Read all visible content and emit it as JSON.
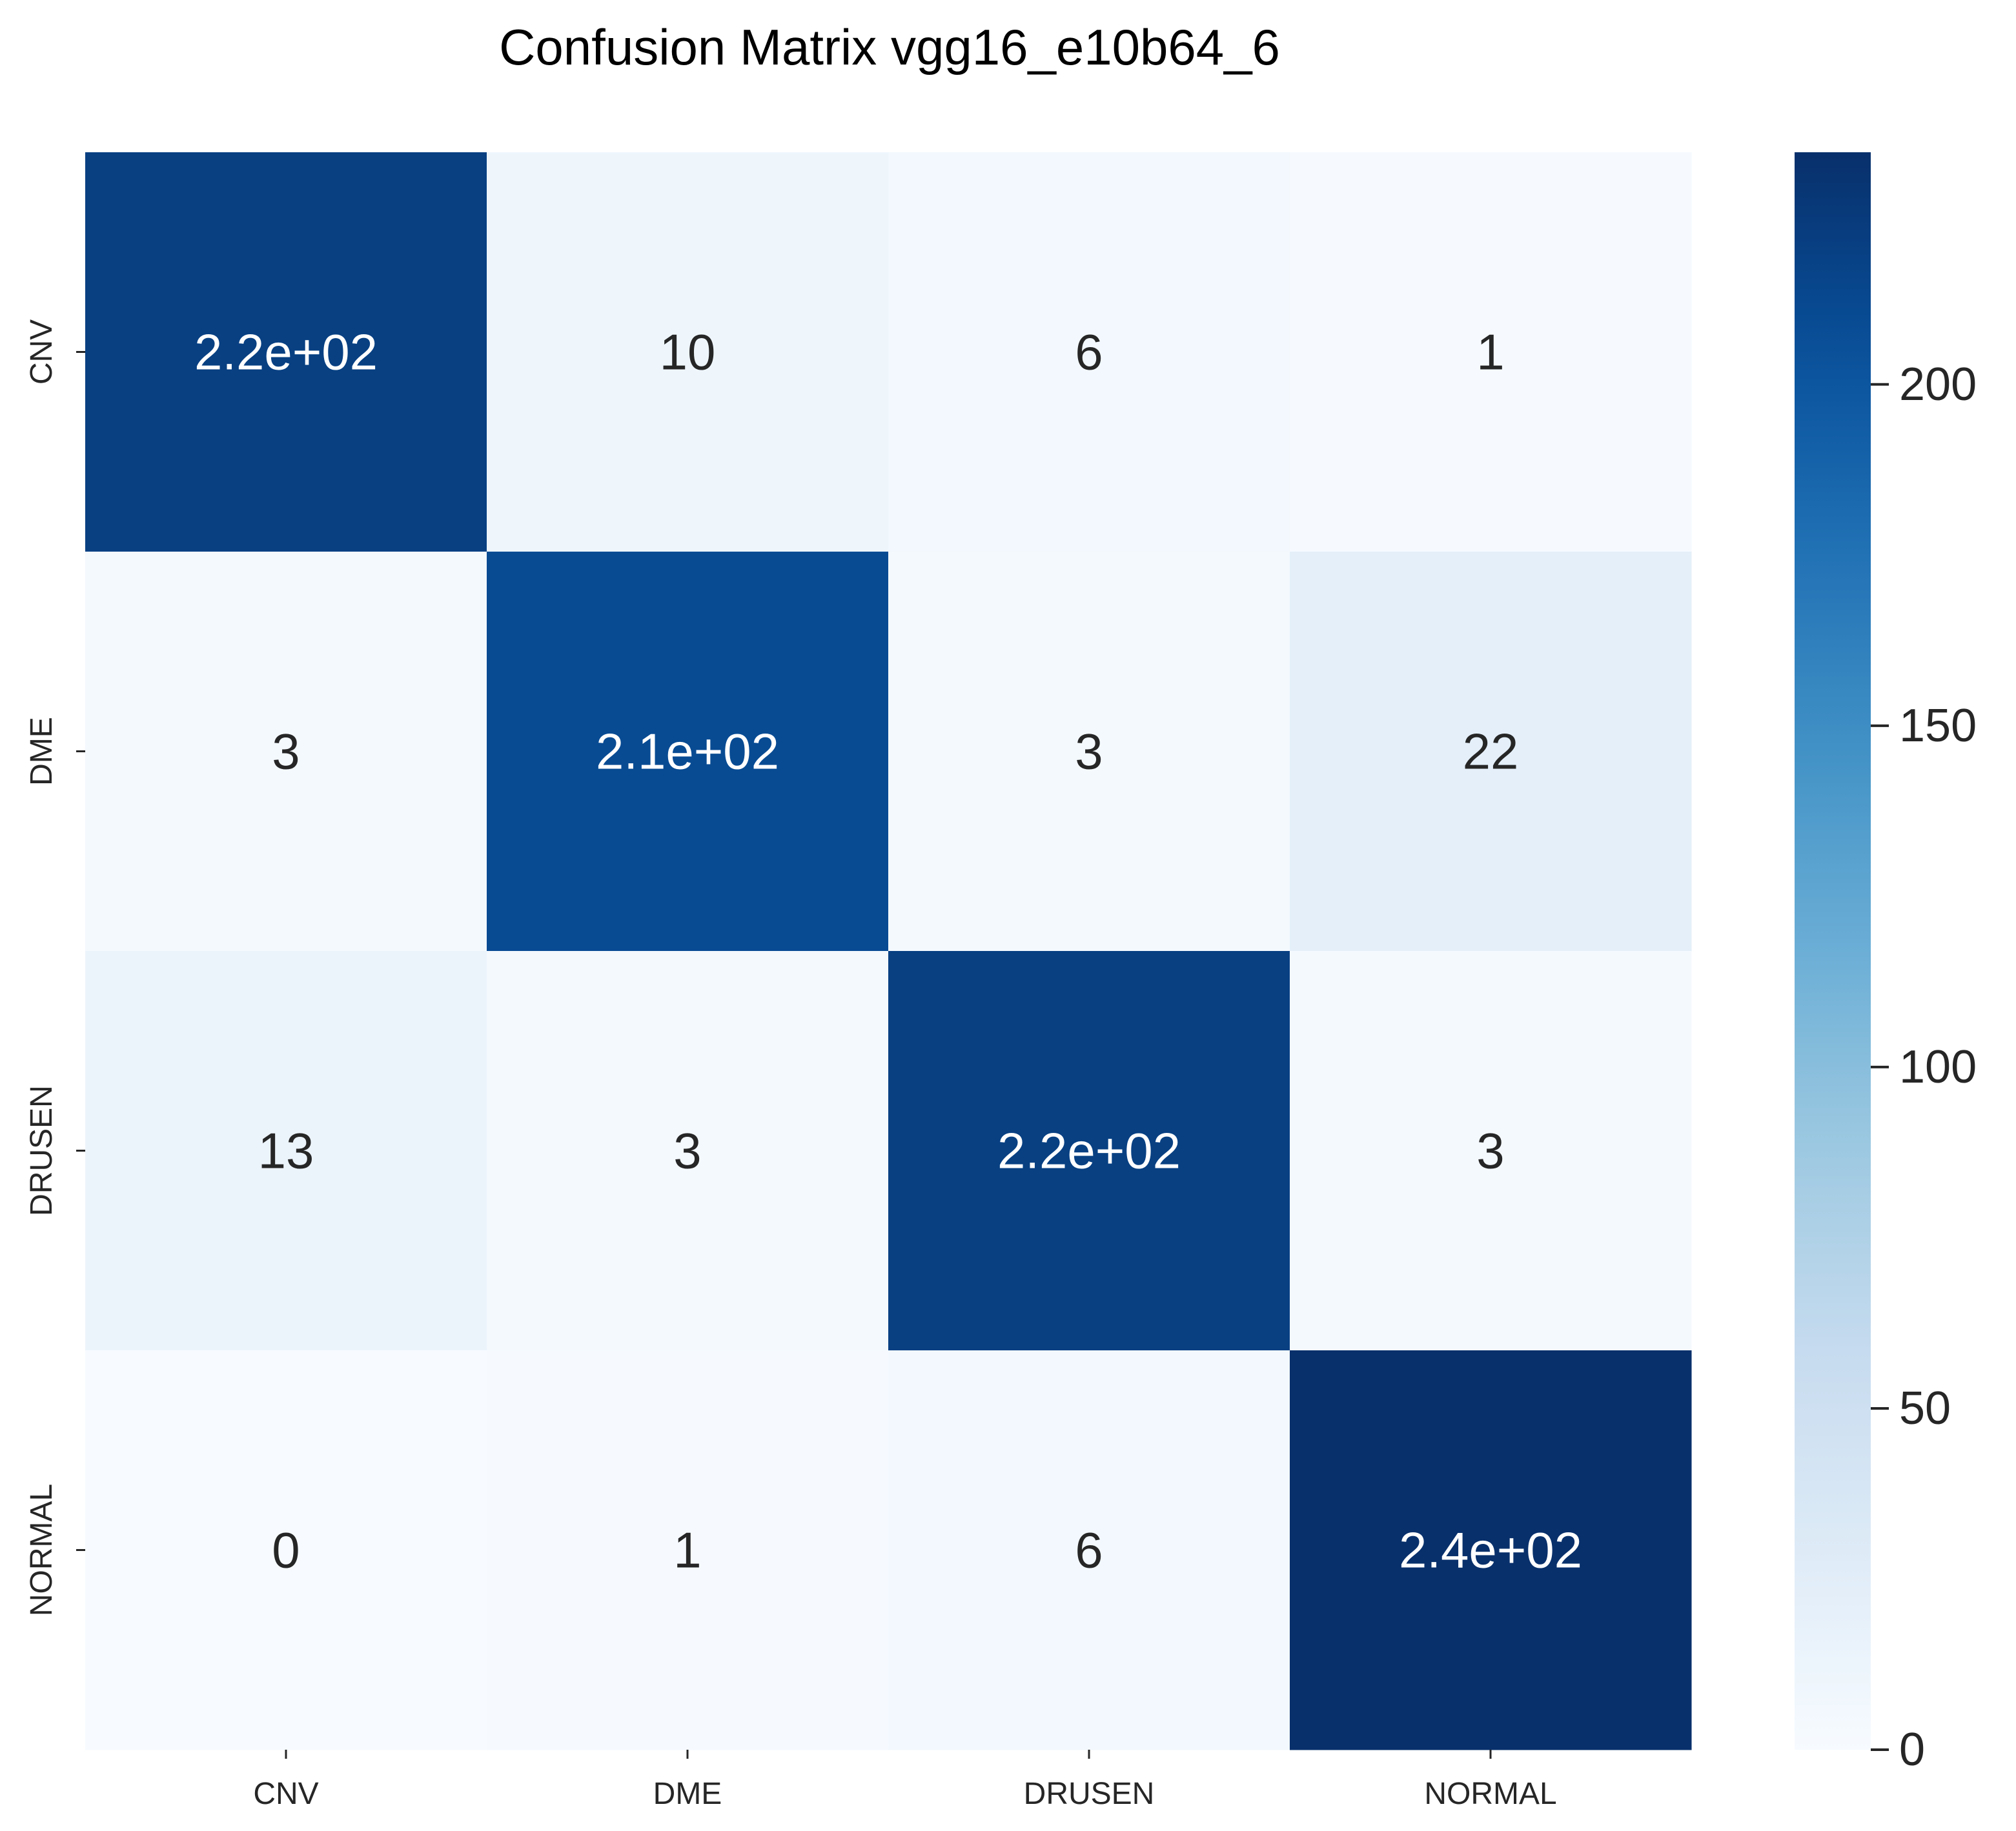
{
  "chart_data": {
    "type": "heatmap",
    "title": "Confusion Matrix vgg16_e10b64_6",
    "xlabel": "",
    "ylabel": "",
    "x_categories": [
      "CNV",
      "DME",
      "DRUSEN",
      "NORMAL"
    ],
    "y_categories": [
      "CNV",
      "DME",
      "DRUSEN",
      "NORMAL"
    ],
    "values": [
      [
        220,
        10,
        6,
        1
      ],
      [
        3,
        210,
        3,
        22
      ],
      [
        13,
        3,
        220,
        3
      ],
      [
        0,
        1,
        6,
        240
      ]
    ],
    "cell_labels": [
      [
        "2.2e+02",
        "10",
        "6",
        "1"
      ],
      [
        "3",
        "2.1e+02",
        "3",
        "22"
      ],
      [
        "13",
        "3",
        "2.2e+02",
        "3"
      ],
      [
        "0",
        "1",
        "6",
        "2.4e+02"
      ]
    ],
    "colorbar": {
      "colormap": "Blues",
      "range": [
        0,
        234
      ],
      "ticks": [
        0,
        50,
        100,
        150,
        200
      ],
      "tick_labels": [
        "0",
        "50",
        "100",
        "150",
        "200"
      ]
    },
    "colors": {
      "low": "#f7fbff",
      "high": "#08306b",
      "light_text": "#ffffff",
      "dark_text": "#262626"
    }
  }
}
